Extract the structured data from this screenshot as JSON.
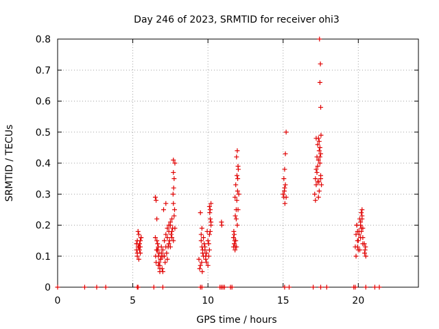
{
  "chart_data": {
    "type": "scatter",
    "title": "Day 246 of 2023, SRMTID for receiver ohi3",
    "xlabel": "GPS time / hours",
    "ylabel": "SRMTID / TECUs",
    "xlim": [
      0,
      24
    ],
    "ylim": [
      0,
      0.8
    ],
    "xticks": [
      0,
      5,
      10,
      15,
      20
    ],
    "xtick_labels": [
      "0",
      "5",
      "10",
      "15",
      "20"
    ],
    "yticks": [
      0,
      0.1,
      0.2,
      0.3,
      0.4,
      0.5,
      0.6,
      0.7,
      0.8
    ],
    "ytick_labels": [
      "0",
      "0.1",
      "0.2",
      "0.3",
      "0.4",
      "0.5",
      "0.6",
      "0.7",
      "0.8"
    ],
    "grid": true,
    "marker": "+",
    "color": "#e00000",
    "series": [
      {
        "name": "SRMTID",
        "x": [
          0.0,
          1.8,
          2.6,
          3.2,
          5.3,
          5.35,
          6.4,
          7.0,
          9.5,
          9.6,
          10.8,
          10.9,
          11.0,
          11.1,
          11.5,
          11.6,
          15.1,
          15.4,
          17.0,
          17.5,
          17.9,
          19.7,
          19.8,
          20.5,
          21.1,
          21.4,
          5.25,
          5.3,
          5.35,
          5.4,
          5.45,
          5.5,
          5.55,
          5.3,
          5.4,
          5.5,
          5.35,
          5.45,
          5.25,
          5.55,
          5.4,
          5.3,
          5.5,
          6.5,
          6.55,
          6.6,
          6.65,
          6.7,
          6.75,
          6.8,
          6.85,
          6.9,
          6.95,
          7.0,
          6.6,
          6.7,
          6.8,
          6.9,
          6.55,
          6.65,
          6.75,
          6.85,
          6.5,
          6.6,
          6.7,
          6.8,
          6.9,
          7.0,
          6.52,
          6.58,
          7.0,
          7.1,
          7.2,
          7.3,
          7.4,
          7.5,
          7.6,
          7.7,
          7.8,
          7.1,
          7.2,
          7.3,
          7.4,
          7.5,
          7.6,
          7.7,
          7.15,
          7.25,
          7.35,
          7.45,
          7.55,
          7.65,
          7.75,
          7.05,
          7.2,
          7.4,
          7.6,
          7.7,
          7.75,
          7.7,
          7.72,
          7.68,
          7.78,
          7.3,
          7.5,
          7.8,
          9.4,
          9.5,
          9.6,
          9.7,
          9.8,
          9.9,
          10.0,
          10.1,
          10.2,
          9.45,
          9.55,
          9.65,
          9.75,
          9.85,
          9.95,
          10.05,
          10.15,
          9.5,
          9.6,
          9.7,
          9.8,
          9.9,
          10.0,
          10.1,
          10.2,
          9.55,
          9.65,
          9.85,
          10.05,
          10.15,
          10.1,
          10.15,
          10.2,
          10.12,
          9.58,
          9.62,
          10.9,
          10.92,
          11.7,
          11.75,
          11.8,
          11.85,
          11.9,
          11.95,
          12.0,
          12.05,
          11.72,
          11.78,
          11.82,
          11.88,
          11.92,
          11.98,
          12.02,
          11.9,
          11.95,
          11.85,
          12.0,
          11.8,
          11.88,
          11.93,
          11.97,
          11.75,
          11.7,
          11.82,
          15.0,
          15.05,
          15.1,
          15.15,
          15.2,
          15.1,
          15.05,
          15.15,
          15.12,
          15.08,
          15.2,
          17.1,
          17.15,
          17.2,
          17.25,
          17.3,
          17.35,
          17.4,
          17.45,
          17.5,
          17.55,
          17.2,
          17.3,
          17.4,
          17.5,
          17.25,
          17.35,
          17.45,
          17.15,
          17.3,
          17.4,
          17.5,
          17.2,
          17.35,
          17.45,
          17.5,
          17.45,
          17.48,
          17.42,
          17.52,
          17.38,
          19.8,
          19.85,
          19.9,
          19.95,
          20.0,
          20.05,
          20.1,
          20.15,
          20.2,
          20.25,
          20.3,
          19.85,
          19.95,
          20.05,
          20.15,
          20.25,
          19.9,
          20.0,
          20.1,
          20.2,
          20.3,
          20.4,
          20.45,
          20.5,
          20.42,
          20.48,
          20.2,
          20.25,
          20.15,
          19.95,
          20.3
        ],
        "y": [
          0.0,
          0.0,
          0.0,
          0.0,
          0.0,
          0.0,
          0.0,
          0.0,
          0.0,
          0.0,
          0.0,
          0.0,
          0.0,
          0.0,
          0.0,
          0.0,
          0.0,
          0.0,
          0.0,
          0.0,
          0.0,
          0.0,
          0.0,
          0.0,
          0.0,
          0.0,
          0.12,
          0.15,
          0.13,
          0.17,
          0.14,
          0.11,
          0.16,
          0.1,
          0.13,
          0.15,
          0.18,
          0.12,
          0.14,
          0.16,
          0.09,
          0.11,
          0.13,
          0.29,
          0.28,
          0.22,
          0.12,
          0.1,
          0.08,
          0.07,
          0.09,
          0.11,
          0.06,
          0.05,
          0.15,
          0.13,
          0.06,
          0.1,
          0.08,
          0.14,
          0.11,
          0.09,
          0.16,
          0.12,
          0.07,
          0.05,
          0.13,
          0.1,
          0.1,
          0.12,
          0.12,
          0.15,
          0.17,
          0.19,
          0.14,
          0.2,
          0.22,
          0.41,
          0.4,
          0.1,
          0.13,
          0.16,
          0.18,
          0.21,
          0.16,
          0.15,
          0.08,
          0.11,
          0.13,
          0.15,
          0.17,
          0.19,
          0.23,
          0.25,
          0.27,
          0.2,
          0.18,
          0.37,
          0.35,
          0.27,
          0.32,
          0.3,
          0.25,
          0.09,
          0.13,
          0.19,
          0.09,
          0.07,
          0.13,
          0.1,
          0.12,
          0.08,
          0.15,
          0.12,
          0.2,
          0.06,
          0.17,
          0.11,
          0.14,
          0.09,
          0.18,
          0.1,
          0.22,
          0.24,
          0.19,
          0.16,
          0.13,
          0.11,
          0.07,
          0.17,
          0.21,
          0.15,
          0.12,
          0.1,
          0.14,
          0.18,
          0.26,
          0.25,
          0.27,
          0.24,
          0.08,
          0.05,
          0.21,
          0.2,
          0.16,
          0.14,
          0.12,
          0.15,
          0.13,
          0.2,
          0.25,
          0.3,
          0.18,
          0.15,
          0.13,
          0.22,
          0.28,
          0.35,
          0.38,
          0.42,
          0.44,
          0.33,
          0.39,
          0.29,
          0.25,
          0.36,
          0.31,
          0.17,
          0.13,
          0.23,
          0.3,
          0.35,
          0.38,
          0.43,
          0.5,
          0.32,
          0.29,
          0.33,
          0.27,
          0.31,
          0.29,
          0.3,
          0.35,
          0.38,
          0.42,
          0.46,
          0.48,
          0.44,
          0.4,
          0.36,
          0.33,
          0.48,
          0.34,
          0.31,
          0.43,
          0.37,
          0.29,
          0.45,
          0.28,
          0.39,
          0.47,
          0.35,
          0.33,
          0.41,
          0.42,
          0.58,
          0.66,
          0.72,
          0.8,
          0.49,
          0.34,
          0.13,
          0.17,
          0.2,
          0.15,
          0.12,
          0.18,
          0.22,
          0.16,
          0.19,
          0.25,
          0.14,
          0.1,
          0.13,
          0.17,
          0.21,
          0.23,
          0.2,
          0.15,
          0.12,
          0.18,
          0.16,
          0.14,
          0.12,
          0.1,
          0.11,
          0.13,
          0.24,
          0.22,
          0.2,
          0.18,
          0.19
        ]
      }
    ]
  }
}
